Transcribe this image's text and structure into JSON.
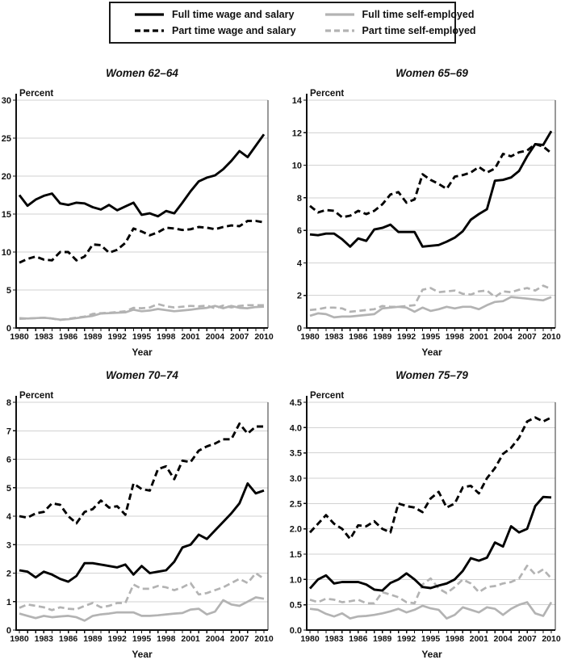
{
  "figure": {
    "legend": {
      "items": [
        {
          "label": "Full time wage and salary",
          "color": "#000000",
          "dash": "solid"
        },
        {
          "label": "Part time wage and salary",
          "color": "#000000",
          "dash": "dashed"
        },
        {
          "label": "Full time self-employed",
          "color": "#b3b3b3",
          "dash": "solid"
        },
        {
          "label": "Part time self-employed",
          "color": "#b3b3b3",
          "dash": "dashed"
        }
      ]
    }
  },
  "chart_data": [
    {
      "type": "line",
      "title": "Women 62–64",
      "ylabel": "Percent",
      "xlabel": "Year",
      "ylim": [
        0,
        30
      ],
      "ytick_step": 5,
      "ytick_decimals": 0,
      "grid": true,
      "legend_position": "top-outside-shared",
      "x": [
        1980,
        1981,
        1982,
        1983,
        1984,
        1985,
        1986,
        1987,
        1988,
        1989,
        1990,
        1991,
        1992,
        1993,
        1994,
        1995,
        1996,
        1997,
        1998,
        1999,
        2000,
        2001,
        2002,
        2003,
        2004,
        2005,
        2006,
        2007,
        2008,
        2009,
        2010
      ],
      "xticks": [
        "1980",
        "1983",
        "1986",
        "1989",
        "1992",
        "1995",
        "1998",
        "2001",
        "2004",
        "2007",
        "2010"
      ],
      "series": [
        {
          "name": "Full time wage and salary",
          "values": [
            17.5,
            16.1,
            16.9,
            17.4,
            17.7,
            16.4,
            16.2,
            16.5,
            16.4,
            15.9,
            15.6,
            16.2,
            15.5,
            16.0,
            16.5,
            14.9,
            15.1,
            14.7,
            15.4,
            15.1,
            16.5,
            18.0,
            19.3,
            19.8,
            20.1,
            20.9,
            22.0,
            23.3,
            22.5,
            24.0,
            25.5
          ]
        },
        {
          "name": "Part time wage and salary",
          "values": [
            8.6,
            9.1,
            9.4,
            9.0,
            8.9,
            10.0,
            10.0,
            8.9,
            9.4,
            11.0,
            10.9,
            9.9,
            10.3,
            11.2,
            13.1,
            12.7,
            12.2,
            12.6,
            13.2,
            13.1,
            12.9,
            13.0,
            13.3,
            13.2,
            13.0,
            13.3,
            13.5,
            13.4,
            14.1,
            14.1,
            13.9
          ]
        },
        {
          "name": "Full time self-employed",
          "values": [
            1.3,
            1.25,
            1.3,
            1.35,
            1.25,
            1.1,
            1.15,
            1.3,
            1.45,
            1.6,
            1.9,
            1.95,
            2.0,
            2.05,
            2.4,
            2.2,
            2.3,
            2.5,
            2.35,
            2.2,
            2.3,
            2.4,
            2.55,
            2.65,
            2.9,
            2.6,
            2.9,
            2.65,
            2.6,
            2.75,
            2.8
          ]
        },
        {
          "name": "Part time self-employed",
          "values": [
            1.2,
            1.25,
            1.3,
            1.35,
            1.25,
            1.05,
            1.2,
            1.35,
            1.5,
            1.85,
            1.95,
            2.0,
            2.1,
            2.2,
            2.65,
            2.6,
            2.7,
            3.15,
            2.85,
            2.7,
            2.8,
            2.9,
            2.85,
            2.95,
            2.6,
            2.95,
            2.7,
            2.9,
            3.0,
            3.0,
            3.0
          ]
        }
      ]
    },
    {
      "type": "line",
      "title": "Women 65–69",
      "ylabel": "Percent",
      "xlabel": "Year",
      "ylim": [
        0,
        14
      ],
      "ytick_step": 2,
      "ytick_decimals": 0,
      "grid": true,
      "legend_position": "top-outside-shared",
      "x": [
        1980,
        1981,
        1982,
        1983,
        1984,
        1985,
        1986,
        1987,
        1988,
        1989,
        1990,
        1991,
        1992,
        1993,
        1994,
        1995,
        1996,
        1997,
        1998,
        1999,
        2000,
        2001,
        2002,
        2003,
        2004,
        2005,
        2006,
        2007,
        2008,
        2009,
        2010
      ],
      "xticks": [
        "1980",
        "1983",
        "1986",
        "1989",
        "1992",
        "1995",
        "1998",
        "2001",
        "2004",
        "2007",
        "2010"
      ],
      "series": [
        {
          "name": "Full time wage and salary",
          "values": [
            5.75,
            5.7,
            5.8,
            5.8,
            5.45,
            5.0,
            5.5,
            5.35,
            6.05,
            6.15,
            6.35,
            5.9,
            5.9,
            5.9,
            5.0,
            5.05,
            5.1,
            5.3,
            5.55,
            5.95,
            6.65,
            7.0,
            7.3,
            9.05,
            9.1,
            9.25,
            9.65,
            10.55,
            11.3,
            11.25,
            12.1
          ]
        },
        {
          "name": "Part time wage and salary",
          "values": [
            7.5,
            7.1,
            7.25,
            7.2,
            6.8,
            6.9,
            7.2,
            7.0,
            7.2,
            7.6,
            8.2,
            8.35,
            7.7,
            7.9,
            9.45,
            9.1,
            8.85,
            8.55,
            9.3,
            9.4,
            9.55,
            9.9,
            9.55,
            9.8,
            10.7,
            10.55,
            10.8,
            10.9,
            11.3,
            11.15,
            10.75
          ]
        },
        {
          "name": "Full time self-employed",
          "values": [
            0.75,
            0.9,
            0.85,
            0.65,
            0.7,
            0.7,
            0.75,
            0.8,
            0.85,
            1.2,
            1.25,
            1.3,
            1.25,
            1.0,
            1.25,
            1.05,
            1.15,
            1.3,
            1.2,
            1.3,
            1.3,
            1.15,
            1.4,
            1.6,
            1.65,
            1.9,
            1.85,
            1.8,
            1.75,
            1.7,
            1.9
          ]
        },
        {
          "name": "Part time self-employed",
          "values": [
            1.1,
            1.15,
            1.25,
            1.25,
            1.2,
            1.0,
            1.05,
            1.1,
            1.15,
            1.35,
            1.3,
            1.3,
            1.35,
            1.4,
            2.35,
            2.45,
            2.2,
            2.25,
            2.3,
            2.1,
            2.05,
            2.25,
            2.3,
            1.9,
            2.25,
            2.2,
            2.35,
            2.45,
            2.3,
            2.6,
            2.4
          ]
        }
      ]
    },
    {
      "type": "line",
      "title": "Women 70–74",
      "ylabel": "Percent",
      "xlabel": "Year",
      "ylim": [
        0,
        8
      ],
      "ytick_step": 1,
      "ytick_decimals": 0,
      "grid": true,
      "legend_position": "top-outside-shared",
      "x": [
        1980,
        1981,
        1982,
        1983,
        1984,
        1985,
        1986,
        1987,
        1988,
        1989,
        1990,
        1991,
        1992,
        1993,
        1994,
        1995,
        1996,
        1997,
        1998,
        1999,
        2000,
        2001,
        2002,
        2003,
        2004,
        2005,
        2006,
        2007,
        2008,
        2009,
        2010
      ],
      "xticks": [
        "1980",
        "1983",
        "1986",
        "1989",
        "1992",
        "1995",
        "1998",
        "2001",
        "2004",
        "2007",
        "2010"
      ],
      "series": [
        {
          "name": "Full time wage and salary",
          "values": [
            2.1,
            2.05,
            1.85,
            2.05,
            1.95,
            1.8,
            1.7,
            1.9,
            2.35,
            2.35,
            2.3,
            2.25,
            2.2,
            2.3,
            1.95,
            2.25,
            2.0,
            2.05,
            2.1,
            2.4,
            2.9,
            3.0,
            3.35,
            3.2,
            3.5,
            3.8,
            4.1,
            4.45,
            5.15,
            4.8,
            4.9
          ]
        },
        {
          "name": "Part time wage and salary",
          "values": [
            4.0,
            3.95,
            4.1,
            4.15,
            4.45,
            4.4,
            4.0,
            3.75,
            4.15,
            4.25,
            4.55,
            4.3,
            4.35,
            4.05,
            5.15,
            4.95,
            4.9,
            5.65,
            5.75,
            5.3,
            5.95,
            5.9,
            6.3,
            6.45,
            6.55,
            6.7,
            6.7,
            7.25,
            6.9,
            7.15,
            7.15
          ]
        },
        {
          "name": "Full time self-employed",
          "values": [
            0.58,
            0.5,
            0.42,
            0.5,
            0.45,
            0.48,
            0.5,
            0.45,
            0.33,
            0.5,
            0.55,
            0.58,
            0.62,
            0.62,
            0.62,
            0.5,
            0.5,
            0.52,
            0.55,
            0.58,
            0.6,
            0.72,
            0.75,
            0.55,
            0.65,
            1.05,
            0.9,
            0.85,
            1.0,
            1.15,
            1.1
          ]
        },
        {
          "name": "Part time self-employed",
          "values": [
            0.78,
            0.9,
            0.85,
            0.8,
            0.7,
            0.8,
            0.75,
            0.73,
            0.85,
            0.95,
            0.8,
            0.85,
            0.95,
            0.95,
            1.6,
            1.45,
            1.45,
            1.55,
            1.5,
            1.4,
            1.5,
            1.65,
            1.25,
            1.3,
            1.4,
            1.5,
            1.65,
            1.8,
            1.65,
            2.0,
            1.8
          ]
        }
      ]
    },
    {
      "type": "line",
      "title": "Women 75–79",
      "ylabel": "Percent",
      "xlabel": "Year",
      "ylim": [
        0,
        4.5
      ],
      "ytick_step": 0.5,
      "ytick_decimals": 1,
      "grid": true,
      "legend_position": "top-outside-shared",
      "x": [
        1980,
        1981,
        1982,
        1983,
        1984,
        1985,
        1986,
        1987,
        1988,
        1989,
        1990,
        1991,
        1992,
        1993,
        1994,
        1995,
        1996,
        1997,
        1998,
        1999,
        2000,
        2001,
        2002,
        2003,
        2004,
        2005,
        2006,
        2007,
        2008,
        2009,
        2010
      ],
      "xticks": [
        "1980",
        "1983",
        "1986",
        "1989",
        "1992",
        "1995",
        "1998",
        "2001",
        "2004",
        "2007",
        "2010"
      ],
      "series": [
        {
          "name": "Full time wage and salary",
          "values": [
            0.82,
            1.0,
            1.08,
            0.92,
            0.95,
            0.95,
            0.95,
            0.9,
            0.8,
            0.78,
            0.93,
            1.0,
            1.12,
            1.0,
            0.85,
            0.83,
            0.88,
            0.92,
            1.0,
            1.17,
            1.42,
            1.37,
            1.43,
            1.73,
            1.65,
            2.05,
            1.93,
            2.0,
            2.45,
            2.63,
            2.62
          ]
        },
        {
          "name": "Part time wage and salary",
          "values": [
            1.93,
            2.1,
            2.27,
            2.1,
            2.0,
            1.8,
            2.07,
            2.05,
            2.15,
            2.0,
            1.93,
            2.5,
            2.45,
            2.42,
            2.33,
            2.6,
            2.73,
            2.42,
            2.5,
            2.82,
            2.85,
            2.7,
            3.0,
            3.2,
            3.48,
            3.6,
            3.8,
            4.12,
            4.2,
            4.12,
            4.2
          ]
        },
        {
          "name": "Full time self-employed",
          "values": [
            0.42,
            0.4,
            0.32,
            0.27,
            0.33,
            0.23,
            0.27,
            0.28,
            0.3,
            0.33,
            0.37,
            0.42,
            0.35,
            0.4,
            0.48,
            0.43,
            0.4,
            0.23,
            0.3,
            0.45,
            0.4,
            0.35,
            0.45,
            0.42,
            0.3,
            0.42,
            0.5,
            0.55,
            0.33,
            0.28,
            0.55
          ]
        },
        {
          "name": "Part time self-employed",
          "values": [
            0.6,
            0.55,
            0.62,
            0.6,
            0.55,
            0.57,
            0.6,
            0.53,
            0.53,
            0.75,
            0.7,
            0.65,
            0.55,
            0.53,
            0.9,
            1.02,
            0.82,
            0.73,
            0.85,
            1.0,
            0.92,
            0.75,
            0.85,
            0.87,
            0.92,
            0.95,
            1.02,
            1.27,
            1.1,
            1.2,
            1.02
          ]
        }
      ]
    }
  ]
}
